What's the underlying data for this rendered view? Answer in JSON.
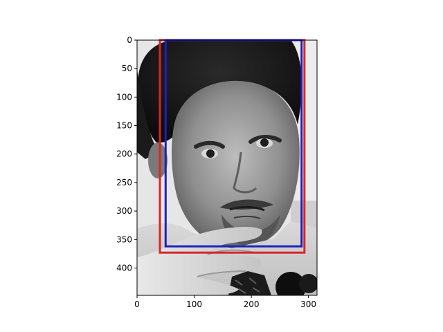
{
  "chart_data": {
    "type": "image",
    "image_size": [
      315,
      448
    ],
    "xlim": [
      0,
      315
    ],
    "ylim": [
      448,
      0
    ],
    "x_ticks": [
      0,
      100,
      200,
      300
    ],
    "y_ticks": [
      0,
      50,
      100,
      150,
      200,
      250,
      300,
      350,
      400
    ],
    "grid": false,
    "boxes": [
      {
        "color": "#d62728",
        "x0": 40,
        "y0": 0,
        "x1": 293,
        "y1": 373
      },
      {
        "color": "#1f1fbf",
        "x0": 50,
        "y0": 0,
        "x1": 288,
        "y1": 362
      }
    ]
  }
}
